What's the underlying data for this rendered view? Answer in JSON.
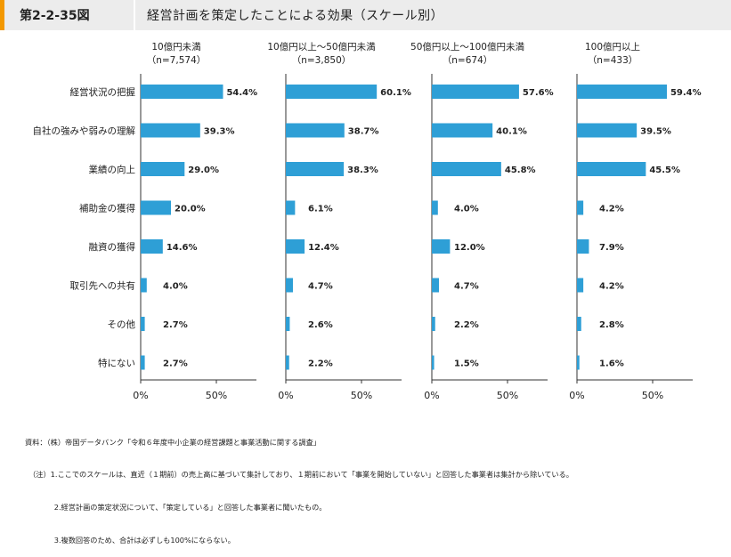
{
  "header": {
    "figure_number": "第2-2-35図",
    "title": "経営計画を策定したことによる効果（スケール別）"
  },
  "colors": {
    "bar": "#2e9fd6",
    "accent": "#f39800",
    "header_bg": "#ececec"
  },
  "chart_data": {
    "type": "bar",
    "orientation": "horizontal",
    "categories": [
      "経営状況の把握",
      "自社の強みや弱みの理解",
      "業績の向上",
      "補助金の獲得",
      "融資の獲得",
      "取引先への共有",
      "その他",
      "特にない"
    ],
    "xlim": [
      0,
      80
    ],
    "x_ticks": [
      "0%",
      "50%"
    ],
    "panels": [
      {
        "title_line1": "10億円未満",
        "title_line2": "（n=7,574）",
        "values": [
          54.4,
          39.3,
          29.0,
          20.0,
          14.6,
          4.0,
          2.7,
          2.7
        ],
        "labels": [
          "54.4%",
          "39.3%",
          "29.0%",
          "20.0%",
          "14.6%",
          "4.0%",
          "2.7%",
          "2.7%"
        ]
      },
      {
        "title_line1": "10億円以上～50億円未満",
        "title_line2": "（n=3,850）",
        "values": [
          60.1,
          38.7,
          38.3,
          6.1,
          12.4,
          4.7,
          2.6,
          2.2
        ],
        "labels": [
          "60.1%",
          "38.7%",
          "38.3%",
          "6.1%",
          "12.4%",
          "4.7%",
          "2.6%",
          "2.2%"
        ]
      },
      {
        "title_line1": "50億円以上～100億円未満",
        "title_line2": "（n=674）",
        "values": [
          57.6,
          40.1,
          45.8,
          4.0,
          12.0,
          4.7,
          2.2,
          1.5
        ],
        "labels": [
          "57.6%",
          "40.1%",
          "45.8%",
          "4.0%",
          "12.0%",
          "4.7%",
          "2.2%",
          "1.5%"
        ]
      },
      {
        "title_line1": "100億円以上",
        "title_line2": "（n=433）",
        "values": [
          59.4,
          39.5,
          45.5,
          4.2,
          7.9,
          4.2,
          2.8,
          1.6
        ],
        "labels": [
          "59.4%",
          "39.5%",
          "45.5%",
          "4.2%",
          "7.9%",
          "4.2%",
          "2.8%",
          "1.6%"
        ]
      }
    ]
  },
  "footnotes": [
    "資料：（株）帝国データバンク「令和６年度中小企業の経営課題と事業活動に関する調査」",
    "　（注）1.ここでのスケールは、直近（１期前）の売上高に基づいて集計しており、１期前において「事業を開始していない」と回答した事業者は集計から除いている。",
    "　　　　2.経営計画の策定状況について、「策定している」と回答した事業者に聞いたもの。",
    "　　　　3.複数回答のため、合計は必ずしも100%にならない。"
  ]
}
